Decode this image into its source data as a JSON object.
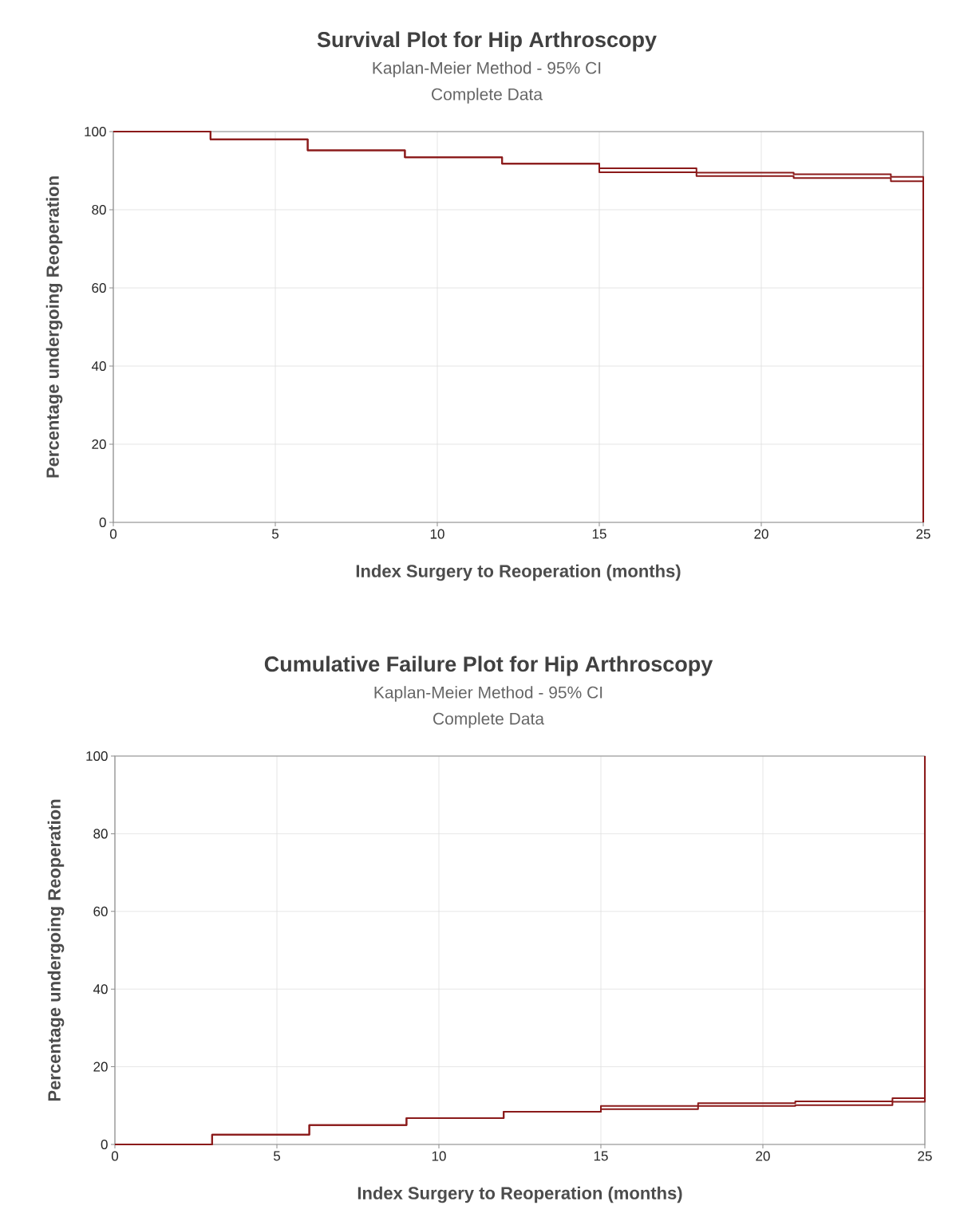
{
  "chart_data": [
    {
      "type": "step",
      "title": "Survival Plot for Hip Arthroscopy",
      "subtitle": "Kaplan-Meier Method - 95% CI",
      "annotations": [
        "Complete Data"
      ],
      "xlabel": "Index Surgery to Reoperation (months)",
      "ylabel": "Percentage undergoing Reoperation",
      "x": [
        0,
        3,
        6,
        9,
        12,
        15,
        18,
        21,
        24,
        25
      ],
      "series": [
        {
          "color": "#8b1a1a",
          "values": [
            100,
            98,
            95.2,
            93.4,
            91.8,
            90.6,
            89.5,
            89.1,
            88.4,
            0
          ]
        },
        {
          "color": "#8b1a1a",
          "values": [
            100,
            98,
            95.2,
            93.4,
            91.8,
            89.6,
            88.6,
            88.1,
            87.3,
            0
          ]
        }
      ],
      "xlim": [
        0,
        25
      ],
      "ylim": [
        0,
        100
      ],
      "xticks": [
        0,
        5,
        10,
        15,
        20,
        25
      ],
      "yticks": [
        0,
        20,
        40,
        60,
        80,
        100
      ],
      "grid": true,
      "line_style": "solid",
      "marker": "none"
    },
    {
      "type": "step",
      "title": "Cumulative Failure Plot for Hip Arthroscopy",
      "subtitle": "Kaplan-Meier Method - 95% CI",
      "annotations": [
        "Complete Data"
      ],
      "xlabel": "Index Surgery to Reoperation (months)",
      "ylabel": "Percentage undergoing Reoperation",
      "x": [
        0,
        3,
        6,
        9,
        12,
        15,
        18,
        21,
        24,
        25
      ],
      "series": [
        {
          "color": "#8b1a1a",
          "values": [
            0,
            2.5,
            5,
            6.8,
            8.4,
            9.9,
            10.6,
            11.1,
            11.9,
            100
          ]
        },
        {
          "color": "#8b1a1a",
          "values": [
            0,
            2.5,
            5,
            6.8,
            8.4,
            9.1,
            9.9,
            10.1,
            11,
            100
          ]
        }
      ],
      "xlim": [
        0,
        25
      ],
      "ylim": [
        0,
        100
      ],
      "xticks": [
        0,
        5,
        10,
        15,
        20,
        25
      ],
      "yticks": [
        0,
        20,
        40,
        60,
        80,
        100
      ],
      "grid": true,
      "line_style": "solid",
      "marker": "none"
    }
  ]
}
